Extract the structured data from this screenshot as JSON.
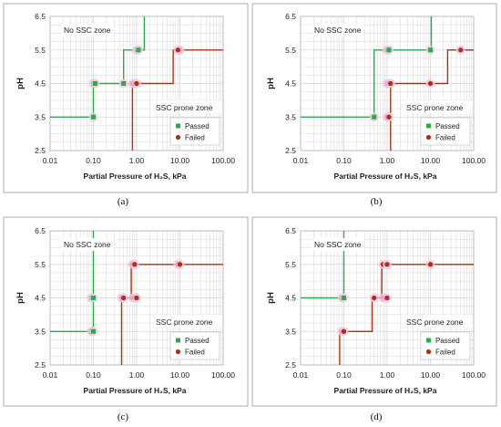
{
  "colors": {
    "passed": "#2eaa4a",
    "failed": "#a83215",
    "grid": "#d6d6d6",
    "highlight": "#f2c4e6",
    "frame": "#9a9a9a"
  },
  "chart_data": [
    {
      "panel": "(a)",
      "type": "scatter",
      "xscale": "log",
      "xlim": [
        0.01,
        100
      ],
      "ylim": [
        2.5,
        6.5
      ],
      "xticks": [
        "0.01",
        "0.10",
        "1.00",
        "10.00",
        "100.00"
      ],
      "yticks": [
        "2.5",
        "3.5",
        "4.5",
        "5.5",
        "6.5"
      ],
      "xlabel": "Partial Pressure of H₂S, kPa",
      "ylabel": "pH",
      "zone_top": "No SSC zone",
      "zone_bottom": "SSC prone zone",
      "legend": [
        "Passed",
        "Failed"
      ],
      "series": [
        {
          "name": "Passed",
          "points": [
            [
              0.1,
              3.5
            ],
            [
              0.1,
              4.5
            ],
            [
              0.11,
              4.5
            ],
            [
              0.5,
              4.5
            ],
            [
              1.0,
              5.5
            ],
            [
              1.1,
              5.5
            ]
          ]
        },
        {
          "name": "Failed",
          "points": [
            [
              0.8,
              4.5
            ],
            [
              0.9,
              4.5
            ],
            [
              1.0,
              4.5
            ],
            [
              10.0,
              5.5
            ],
            [
              9.0,
              5.5
            ]
          ]
        }
      ],
      "boundaries": [
        {
          "series": "Passed",
          "path": [
            [
              0.01,
              3.5
            ],
            [
              0.1,
              3.5
            ],
            [
              0.1,
              4.5
            ],
            [
              0.5,
              4.5
            ],
            [
              0.5,
              5.5
            ],
            [
              1.5,
              5.5
            ],
            [
              1.5,
              6.5
            ]
          ]
        },
        {
          "series": "Failed",
          "path": [
            [
              0.8,
              2.5
            ],
            [
              0.8,
              4.5
            ],
            [
              7.0,
              4.5
            ],
            [
              7.0,
              5.5
            ],
            [
              100,
              5.5
            ]
          ]
        }
      ],
      "legend_position": "bottom-right"
    },
    {
      "panel": "(b)",
      "type": "scatter",
      "xscale": "log",
      "xlim": [
        0.01,
        100
      ],
      "ylim": [
        2.5,
        6.5
      ],
      "xticks": [
        "0.01",
        "0.10",
        "1.00",
        "10.00",
        "100.00"
      ],
      "yticks": [
        "2.5",
        "3.5",
        "4.5",
        "5.5",
        "6.5"
      ],
      "xlabel": "Partial Pressure of H₂S, kPa",
      "ylabel": "pH",
      "zone_top": "No SSC zone",
      "zone_bottom": "SSC prone zone",
      "legend": [
        "Passed",
        "Failed"
      ],
      "series": [
        {
          "name": "Passed",
          "points": [
            [
              0.5,
              3.5
            ],
            [
              1.0,
              4.5
            ],
            [
              1.0,
              5.5
            ],
            [
              1.1,
              5.5
            ],
            [
              10.0,
              5.5
            ]
          ]
        },
        {
          "name": "Failed",
          "points": [
            [
              1.0,
              3.5
            ],
            [
              1.1,
              3.5
            ],
            [
              1.1,
              4.5
            ],
            [
              1.2,
              4.5
            ],
            [
              10.0,
              4.5
            ],
            [
              50.0,
              5.5
            ]
          ]
        }
      ],
      "boundaries": [
        {
          "series": "Passed",
          "path": [
            [
              0.01,
              3.5
            ],
            [
              0.5,
              3.5
            ],
            [
              0.5,
              5.5
            ],
            [
              10.5,
              5.5
            ],
            [
              10.5,
              6.5
            ]
          ]
        },
        {
          "series": "Failed",
          "path": [
            [
              1.2,
              2.5
            ],
            [
              1.2,
              4.5
            ],
            [
              25.0,
              4.5
            ],
            [
              25.0,
              5.5
            ],
            [
              100,
              5.5
            ]
          ]
        }
      ],
      "legend_position": "bottom-right"
    },
    {
      "panel": "(c)",
      "type": "scatter",
      "xscale": "log",
      "xlim": [
        0.01,
        100
      ],
      "ylim": [
        2.5,
        6.5
      ],
      "xticks": [
        "0.01",
        "0.10",
        "1.00",
        "10.00",
        "100.00"
      ],
      "yticks": [
        "2.5",
        "3.5",
        "4.5",
        "5.5",
        "6.5"
      ],
      "xlabel": "Partial Pressure of H₂S, kPa",
      "ylabel": "pH",
      "zone_top": "No SSC zone",
      "zone_bottom": "SSC prone zone",
      "legend": [
        "Passed",
        "Failed"
      ],
      "series": [
        {
          "name": "Passed",
          "points": [
            [
              0.09,
              3.5
            ],
            [
              0.1,
              3.5
            ],
            [
              0.09,
              4.5
            ],
            [
              0.1,
              4.5
            ]
          ]
        },
        {
          "name": "Failed",
          "points": [
            [
              0.45,
              4.5
            ],
            [
              0.5,
              4.5
            ],
            [
              0.8,
              4.5
            ],
            [
              0.9,
              4.5
            ],
            [
              1.0,
              4.5
            ],
            [
              0.8,
              5.5
            ],
            [
              0.9,
              5.5
            ],
            [
              9.0,
              5.5
            ],
            [
              10.0,
              5.5
            ]
          ]
        }
      ],
      "boundaries": [
        {
          "series": "Passed",
          "path": [
            [
              0.01,
              3.5
            ],
            [
              0.1,
              3.5
            ],
            [
              0.1,
              6.5
            ]
          ]
        },
        {
          "series": "Failed",
          "path": [
            [
              0.45,
              2.5
            ],
            [
              0.45,
              4.5
            ],
            [
              0.75,
              4.5
            ],
            [
              0.75,
              5.5
            ],
            [
              100,
              5.5
            ]
          ]
        }
      ],
      "legend_position": "bottom-right"
    },
    {
      "panel": "(d)",
      "type": "scatter",
      "xscale": "log",
      "xlim": [
        0.01,
        100
      ],
      "ylim": [
        2.5,
        6.5
      ],
      "xticks": [
        "0.01",
        "0.10",
        "1.00",
        "10.00",
        "100.00"
      ],
      "yticks": [
        "2.5",
        "3.5",
        "4.5",
        "5.5",
        "6.5"
      ],
      "xlabel": "Partial Pressure of H₂S, kPa",
      "ylabel": "pH",
      "zone_top": "No SSC zone",
      "zone_bottom": "SSC prone zone",
      "legend": [
        "Passed",
        "Failed"
      ],
      "series": [
        {
          "name": "Passed",
          "points": [
            [
              0.09,
              4.5
            ],
            [
              0.1,
              4.5
            ]
          ]
        },
        {
          "name": "Failed",
          "points": [
            [
              0.09,
              3.5
            ],
            [
              0.1,
              3.5
            ],
            [
              0.5,
              4.5
            ],
            [
              0.8,
              4.5
            ],
            [
              0.9,
              4.5
            ],
            [
              1.0,
              4.5
            ],
            [
              0.8,
              5.5
            ],
            [
              1.0,
              5.5
            ],
            [
              10.0,
              5.5
            ]
          ]
        }
      ],
      "boundaries": [
        {
          "series": "Passed",
          "path": [
            [
              0.01,
              4.5
            ],
            [
              0.1,
              4.5
            ],
            [
              0.1,
              6.5
            ]
          ]
        },
        {
          "series": "Failed",
          "path": [
            [
              0.08,
              2.5
            ],
            [
              0.08,
              3.5
            ],
            [
              0.45,
              3.5
            ],
            [
              0.45,
              4.5
            ],
            [
              0.75,
              4.5
            ],
            [
              0.75,
              5.5
            ],
            [
              100,
              5.5
            ]
          ]
        }
      ],
      "legend_position": "bottom-right"
    }
  ]
}
